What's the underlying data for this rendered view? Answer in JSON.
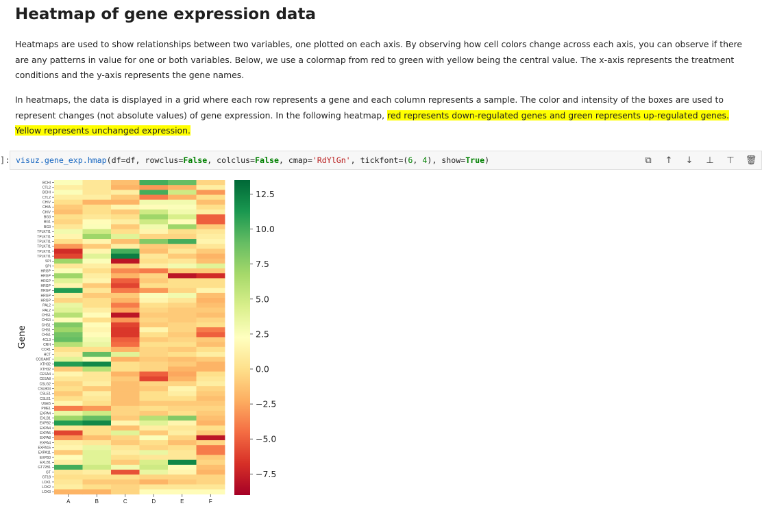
{
  "title": "Heatmap of gene expression data",
  "paragraph1": "Heatmaps are used to show relationships between two variables, one plotted on each axis. By observing how cell colors change across each axis, you can observe if there are any patterns in value for one or both variables. Below, we use a colormap from red to green with yellow being the central value. The x-axis represents the treatment conditions and the y-axis represents the gene names.",
  "paragraph2_plain": "In heatmaps, the data is displayed in a grid where each row represents a gene and each column represents a sample. The color and intensity of the boxes are used to represent changes (not absolute values) of gene expression. In the following heatmap, ",
  "paragraph2_highlight": "red represents down-regulated genes and green represents up-regulated genes. Yellow represents unchanged expression.",
  "cell": {
    "prompt": "]:",
    "code_tokens": [
      {
        "t": "visuz.gene_exp.hmap",
        "c": "name"
      },
      {
        "t": "(df=df, rowclus=",
        "c": "plain"
      },
      {
        "t": "False",
        "c": "kw"
      },
      {
        "t": ", colclus=",
        "c": "plain"
      },
      {
        "t": "False",
        "c": "kw"
      },
      {
        "t": ", cmap=",
        "c": "plain"
      },
      {
        "t": "'RdYlGn'",
        "c": "str"
      },
      {
        "t": ", tickfont=(",
        "c": "plain"
      },
      {
        "t": "6",
        "c": "num"
      },
      {
        "t": ", ",
        "c": "plain"
      },
      {
        "t": "4",
        "c": "num"
      },
      {
        "t": "), show=",
        "c": "plain"
      },
      {
        "t": "True",
        "c": "kw"
      },
      {
        "t": ")",
        "c": "plain"
      }
    ],
    "toolbar": [
      {
        "name": "copy-cell-icon",
        "glyph": "⧉"
      },
      {
        "name": "move-up-icon",
        "glyph": "↑"
      },
      {
        "name": "move-down-icon",
        "glyph": "↓"
      },
      {
        "name": "insert-above-icon",
        "glyph": "⊥"
      },
      {
        "name": "insert-below-icon",
        "glyph": "⊤"
      },
      {
        "name": "delete-cell-icon",
        "glyph": "🗑"
      }
    ]
  },
  "chart_data": {
    "type": "heatmap",
    "ylabel": "Gene",
    "xlabel": "",
    "columns": [
      "A",
      "B",
      "C",
      "D",
      "E",
      "F"
    ],
    "rows": [
      "BCHI",
      "CTL2",
      "BCHI",
      "CTL2",
      "CHIV",
      "CHIA",
      "CHIV",
      "BG3",
      "BG1",
      "BG3",
      "TPLKTI1",
      "TPLKTI1",
      "TPLKTI1",
      "TPLKTI1",
      "TPLKTI1",
      "TPLKTI1",
      "SPI",
      "SPI",
      "HRGP",
      "HRGP",
      "HRGP",
      "HRGP",
      "HRGP",
      "HRGP",
      "HRGP",
      "PAL2",
      "PAL2",
      "CHS1",
      "CHS3",
      "CHS1",
      "CHS1",
      "CHS1",
      "4CL3",
      "CRH",
      "CCR1",
      "HCT",
      "CCOAMT",
      "XTH32",
      "XTH32",
      "CESA4",
      "CESA8",
      "CSLG2",
      "CSLB03",
      "CSLE1",
      "CSLE1",
      "UGE5",
      "PME1",
      "EXPA4",
      "EXLB1",
      "EXPB2",
      "EXPA4",
      "EXPA5",
      "EXPA8",
      "EXPA4",
      "EXPA15",
      "EXPA11",
      "EXPB3",
      "EXLB1",
      "GT72B1",
      "GT",
      "GT18",
      "LOX1",
      "LOX2",
      "LOX3"
    ],
    "values": [
      [
        2.5,
        0.5,
        -1.5,
        10,
        9,
        -0.5
      ],
      [
        1,
        0.5,
        -2,
        -3,
        -2,
        1
      ],
      [
        2.5,
        0.5,
        1,
        10,
        5,
        -3
      ],
      [
        1,
        1,
        -1,
        -4,
        -2,
        0
      ],
      [
        0,
        -2,
        -2,
        3,
        3,
        -1.5
      ],
      [
        -1,
        0,
        1.5,
        2,
        2.5,
        0
      ],
      [
        -1.5,
        0,
        -1,
        5,
        3,
        1
      ],
      [
        0,
        0.5,
        0,
        7,
        4.5,
        -5
      ],
      [
        -0.5,
        2,
        1,
        5,
        2,
        -5
      ],
      [
        0.5,
        2.5,
        -1,
        3,
        7,
        -1
      ],
      [
        3,
        5,
        0,
        1.5,
        0,
        0.5
      ],
      [
        1.5,
        7,
        4,
        -0.5,
        -0.5,
        1
      ],
      [
        0,
        1.5,
        -1.5,
        8,
        10,
        1.5
      ],
      [
        -3,
        -1,
        1,
        -1,
        -0.5,
        0.5
      ],
      [
        -7,
        1.5,
        10,
        -1.5,
        0.5,
        -1
      ],
      [
        -6,
        4,
        12.5,
        0.5,
        -1,
        -2
      ],
      [
        7,
        2.5,
        -8,
        0,
        0.5,
        -1.5
      ],
      [
        0.5,
        1,
        -1,
        1,
        3,
        4
      ],
      [
        2.5,
        0,
        -3.5,
        -4,
        -1,
        -1
      ],
      [
        7,
        1,
        -2,
        -0.5,
        -8,
        -7
      ],
      [
        4,
        1.5,
        -5,
        -1,
        0,
        0
      ],
      [
        1.5,
        -1,
        -6,
        0,
        0,
        0
      ],
      [
        11,
        0.5,
        -4,
        -3,
        -0.5,
        1.5
      ],
      [
        1,
        -1,
        -1,
        2.5,
        3,
        -1.5
      ],
      [
        -0.5,
        0,
        -2,
        1.5,
        0.5,
        -2
      ],
      [
        3.5,
        0,
        -4,
        0,
        -0.5,
        -1.5
      ],
      [
        4,
        1,
        -2.5,
        -0.5,
        -1,
        -1
      ],
      [
        6,
        2,
        -8,
        -1,
        -1,
        -1.5
      ],
      [
        2,
        0,
        -3,
        -0.5,
        -1,
        -0.5
      ],
      [
        8,
        2,
        -6,
        -1,
        -0.5,
        0
      ],
      [
        7,
        1.5,
        -6.5,
        1.5,
        -0.5,
        -4
      ],
      [
        8.5,
        2,
        -6.5,
        0,
        -1,
        -5
      ],
      [
        9,
        3,
        -5,
        -1,
        -0.5,
        -1
      ],
      [
        6,
        3.5,
        -4.5,
        0,
        0,
        -1.5
      ],
      [
        0,
        0,
        -2,
        -0.5,
        -1,
        0
      ],
      [
        1,
        9,
        4,
        -0.5,
        0,
        1
      ],
      [
        4,
        2.5,
        -2,
        -1,
        -1.5,
        -1
      ],
      [
        11,
        12,
        0,
        -0.5,
        -1,
        -2
      ],
      [
        -1,
        6,
        0,
        -0.5,
        -2,
        -2
      ],
      [
        1.5,
        0.5,
        -2,
        -5,
        -2.5,
        0
      ],
      [
        0.5,
        0.5,
        -1,
        -6,
        -2,
        0.5
      ],
      [
        -0.5,
        1,
        -1.5,
        -0.5,
        -0.5,
        1
      ],
      [
        0,
        -1,
        -1.5,
        -1,
        1.5,
        -0.5
      ],
      [
        -1,
        1,
        -1.5,
        0,
        1,
        -1
      ],
      [
        0,
        0.5,
        -1.5,
        0,
        0,
        -1.5
      ],
      [
        1.5,
        0,
        -1.5,
        -1,
        -1,
        -1
      ],
      [
        -4,
        -3,
        -0.5,
        0,
        -0.5,
        -0.5
      ],
      [
        3.5,
        5,
        -0.5,
        -1,
        0,
        -1
      ],
      [
        7,
        9,
        -1,
        6,
        8,
        -1.5
      ],
      [
        11,
        12,
        1.5,
        4,
        1.5,
        -2
      ],
      [
        0.5,
        0,
        -1.5,
        1,
        0.5,
        0
      ],
      [
        -6,
        0,
        4,
        -1,
        1,
        -1
      ],
      [
        -3,
        -1.5,
        -0.5,
        2.5,
        -0.5,
        -8
      ],
      [
        1,
        0.5,
        -1,
        0,
        -1.5,
        -0.5
      ],
      [
        1.5,
        3.5,
        0.5,
        -0.5,
        0,
        -4
      ],
      [
        -1,
        4,
        1,
        3.5,
        0.5,
        -4
      ],
      [
        2,
        4,
        0,
        0.5,
        0.5,
        -1
      ],
      [
        1,
        4,
        -1,
        4.5,
        12,
        -0.5
      ],
      [
        10,
        5,
        3,
        5,
        2,
        -1.5
      ],
      [
        0.5,
        1,
        -5.5,
        3.5,
        1.5,
        -2
      ],
      [
        0,
        0,
        0,
        -0.5,
        -0.5,
        -0.5
      ],
      [
        0.5,
        -1,
        -1,
        -2,
        -1,
        -0.5
      ],
      [
        1,
        0,
        -0.5,
        0.5,
        0.5,
        0.5
      ],
      [
        -2,
        -2,
        -0.5,
        2,
        2,
        2
      ]
    ],
    "colormap": "RdYlGn",
    "colorbar": {
      "min": -9,
      "max": 13.5,
      "ticks": [
        12.5,
        10.0,
        7.5,
        5.0,
        2.5,
        0.0,
        -2.5,
        -5.0,
        -7.5
      ]
    }
  }
}
